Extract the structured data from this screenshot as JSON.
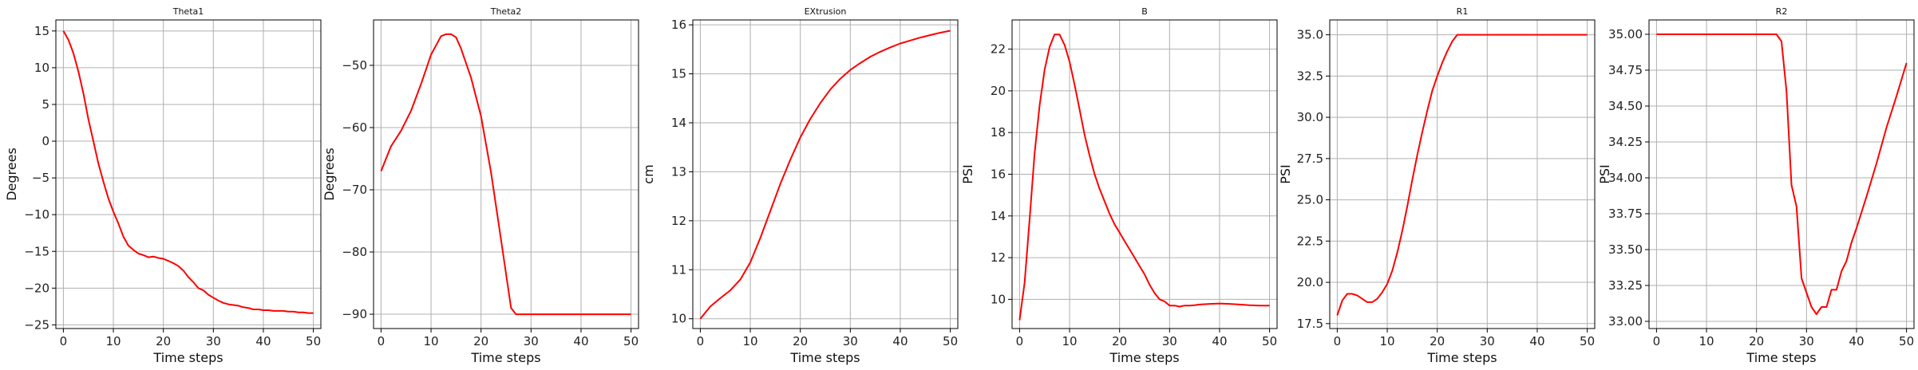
{
  "chart_data": [
    {
      "type": "line",
      "title": "Theta1",
      "xlabel": "Time steps",
      "ylabel": "Degrees",
      "grid": true,
      "color": "#ff0000",
      "xlim": [
        -1.5,
        51.5
      ],
      "ylim": [
        -25.5,
        16.5
      ],
      "xticks": [
        0,
        10,
        20,
        30,
        40,
        50
      ],
      "yticks": [
        -25,
        -20,
        -15,
        -10,
        -5,
        0,
        5,
        10,
        15
      ],
      "ytick_labels": [
        "−25",
        "−20",
        "−15",
        "−10",
        "−5",
        "0",
        "5",
        "10",
        "15"
      ],
      "x": [
        0,
        1,
        2,
        3,
        4,
        5,
        6,
        7,
        8,
        9,
        10,
        11,
        12,
        13,
        14,
        15,
        16,
        17,
        18,
        19,
        20,
        21,
        22,
        23,
        24,
        25,
        26,
        27,
        28,
        29,
        30,
        31,
        32,
        33,
        34,
        35,
        36,
        37,
        38,
        39,
        40,
        41,
        42,
        43,
        44,
        45,
        46,
        47,
        48,
        49,
        50
      ],
      "y": [
        15,
        13.8,
        12,
        9.5,
        6.5,
        3,
        0,
        -3,
        -5.5,
        -7.8,
        -9.6,
        -11.2,
        -13,
        -14.2,
        -14.8,
        -15.3,
        -15.5,
        -15.8,
        -15.7,
        -15.9,
        -16,
        -16.3,
        -16.6,
        -17,
        -17.6,
        -18.5,
        -19.2,
        -20,
        -20.3,
        -20.9,
        -21.3,
        -21.7,
        -22,
        -22.2,
        -22.3,
        -22.4,
        -22.6,
        -22.7,
        -22.9,
        -22.9,
        -23,
        -23,
        -23.1,
        -23.1,
        -23.1,
        -23.2,
        -23.2,
        -23.3,
        -23.3,
        -23.4,
        -23.4
      ]
    },
    {
      "type": "line",
      "title": "Theta2",
      "xlabel": "Time steps",
      "ylabel": "Degrees",
      "grid": true,
      "color": "#ff0000",
      "xlim": [
        -1.5,
        51.5
      ],
      "ylim": [
        -92.3,
        -42.7
      ],
      "xticks": [
        0,
        10,
        20,
        30,
        40,
        50
      ],
      "yticks": [
        -90,
        -80,
        -70,
        -60,
        -50
      ],
      "ytick_labels": [
        "−90",
        "−80",
        "−70",
        "−60",
        "−50"
      ],
      "x": [
        0,
        2,
        4,
        6,
        8,
        10,
        12,
        13,
        14,
        15,
        16,
        18,
        20,
        22,
        24,
        26,
        27,
        28,
        30,
        50
      ],
      "y": [
        -67,
        -63,
        -60.5,
        -57.3,
        -53,
        -48.3,
        -45.3,
        -45,
        -45,
        -45.5,
        -47.3,
        -52,
        -58.2,
        -67.2,
        -78,
        -89,
        -90,
        -90,
        -90,
        -90
      ]
    },
    {
      "type": "line",
      "title": "EXtrusion",
      "xlabel": "Time steps",
      "ylabel": "cm",
      "grid": true,
      "color": "#ff0000",
      "xlim": [
        -1.5,
        51.5
      ],
      "ylim": [
        9.8,
        16.1
      ],
      "xticks": [
        0,
        10,
        20,
        30,
        40,
        50
      ],
      "yticks": [
        10,
        11,
        12,
        13,
        14,
        15,
        16
      ],
      "ytick_labels": [
        "10",
        "11",
        "12",
        "13",
        "14",
        "15",
        "16"
      ],
      "x": [
        0,
        2,
        4,
        6,
        8,
        10,
        12,
        14,
        16,
        18,
        20,
        22,
        24,
        26,
        28,
        30,
        32,
        34,
        36,
        38,
        40,
        42,
        44,
        46,
        48,
        50
      ],
      "y": [
        10,
        10.25,
        10.42,
        10.58,
        10.8,
        11.15,
        11.65,
        12.2,
        12.75,
        13.25,
        13.7,
        14.08,
        14.4,
        14.68,
        14.9,
        15.08,
        15.22,
        15.35,
        15.45,
        15.54,
        15.62,
        15.68,
        15.74,
        15.79,
        15.84,
        15.88
      ]
    },
    {
      "type": "line",
      "title": "B",
      "xlabel": "Time steps",
      "ylabel": "PSI",
      "grid": true,
      "color": "#ff0000",
      "xlim": [
        -1.5,
        51.5
      ],
      "ylim": [
        8.6,
        23.4
      ],
      "xticks": [
        0,
        10,
        20,
        30,
        40,
        50
      ],
      "yticks": [
        10,
        12,
        14,
        16,
        18,
        20,
        22
      ],
      "ytick_labels": [
        "10",
        "12",
        "14",
        "16",
        "18",
        "20",
        "22"
      ],
      "x": [
        0,
        1,
        2,
        3,
        4,
        5,
        6,
        7,
        8,
        9,
        10,
        11,
        12,
        13,
        14,
        15,
        16,
        17,
        18,
        19,
        20,
        21,
        22,
        23,
        24,
        25,
        26,
        27,
        28,
        29,
        30,
        31,
        32,
        33,
        34,
        35,
        36,
        38,
        40,
        42,
        44,
        46,
        48,
        50
      ],
      "y": [
        9,
        10.8,
        13.8,
        17,
        19.3,
        21,
        22.1,
        22.7,
        22.7,
        22.2,
        21.4,
        20.3,
        19.1,
        17.9,
        16.9,
        16,
        15.3,
        14.7,
        14.1,
        13.6,
        13.2,
        12.8,
        12.4,
        12,
        11.6,
        11.2,
        10.7,
        10.3,
        10,
        9.9,
        9.7,
        9.7,
        9.65,
        9.7,
        9.7,
        9.72,
        9.75,
        9.78,
        9.8,
        9.78,
        9.75,
        9.72,
        9.7,
        9.7
      ]
    },
    {
      "type": "line",
      "title": "R1",
      "xlabel": "Time steps",
      "ylabel": "PSI",
      "grid": true,
      "color": "#ff0000",
      "xlim": [
        -1.5,
        51.5
      ],
      "ylim": [
        17.2,
        35.9
      ],
      "xticks": [
        0,
        10,
        20,
        30,
        40,
        50
      ],
      "yticks": [
        17.5,
        20.0,
        22.5,
        25.0,
        27.5,
        30.0,
        32.5,
        35.0
      ],
      "ytick_labels": [
        "17.5",
        "20.0",
        "22.5",
        "25.0",
        "27.5",
        "30.0",
        "32.5",
        "35.0"
      ],
      "x": [
        0,
        1,
        2,
        3,
        4,
        5,
        6,
        7,
        8,
        9,
        10,
        11,
        12,
        13,
        14,
        15,
        16,
        17,
        18,
        19,
        20,
        21,
        22,
        23,
        24,
        25,
        30,
        35,
        40,
        45,
        50
      ],
      "y": [
        18,
        18.9,
        19.3,
        19.3,
        19.2,
        19,
        18.8,
        18.8,
        19,
        19.4,
        19.9,
        20.7,
        21.8,
        23.1,
        24.6,
        26.2,
        27.7,
        29.1,
        30.4,
        31.6,
        32.5,
        33.3,
        34,
        34.6,
        35,
        35,
        35,
        35,
        35,
        35,
        35
      ]
    },
    {
      "type": "line",
      "title": "R2",
      "xlabel": "Time steps",
      "ylabel": "PSI",
      "grid": true,
      "color": "#ff0000",
      "xlim": [
        -1.5,
        51.5
      ],
      "ylim": [
        32.95,
        35.1
      ],
      "xticks": [
        0,
        10,
        20,
        30,
        40,
        50
      ],
      "yticks": [
        33.0,
        33.25,
        33.5,
        33.75,
        34.0,
        34.25,
        34.5,
        34.75,
        35.0
      ],
      "ytick_labels": [
        "33.00",
        "33.25",
        "33.50",
        "33.75",
        "34.00",
        "34.25",
        "34.50",
        "34.75",
        "35.00"
      ],
      "x": [
        0,
        24,
        25,
        26,
        27,
        28,
        29,
        30,
        31,
        32,
        33,
        34,
        35,
        36,
        37,
        38,
        39,
        40,
        42,
        44,
        46,
        48,
        50
      ],
      "y": [
        35,
        35,
        34.95,
        34.6,
        33.95,
        33.8,
        33.3,
        33.2,
        33.1,
        33.05,
        33.1,
        33.1,
        33.22,
        33.22,
        33.35,
        33.42,
        33.55,
        33.65,
        33.87,
        34.1,
        34.35,
        34.57,
        34.8
      ]
    }
  ]
}
